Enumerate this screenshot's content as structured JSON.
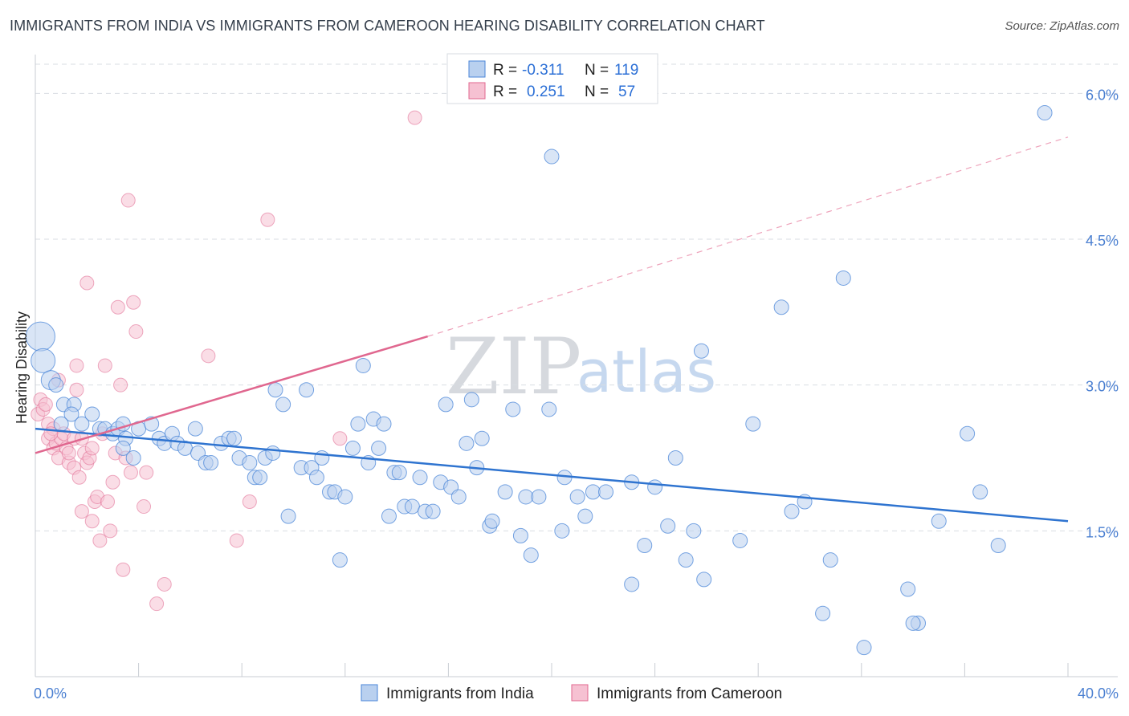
{
  "title": "IMMIGRANTS FROM INDIA VS IMMIGRANTS FROM CAMEROON HEARING DISABILITY CORRELATION CHART",
  "source": "Source: ZipAtlas.com",
  "watermark": {
    "zip": "ZIP",
    "atlas": "atlas"
  },
  "colors": {
    "india": "#4a86d8",
    "india_fill": "#b9d0ef",
    "cameroon": "#e0678f",
    "cameroon_fill": "#f6c1d2",
    "tick_text": "#4a7fd1",
    "grid": "#d9dde3"
  },
  "legend": {
    "rows": [
      {
        "r_label": "R =",
        "r_value": "-0.311",
        "n_label": "N =",
        "n_value": "119"
      },
      {
        "r_label": "R =",
        "r_value": "0.251",
        "n_label": "N =",
        "n_value": "57"
      }
    ]
  },
  "bottom_legend": [
    "Immigrants from India",
    "Immigrants from Cameroon"
  ],
  "chart_data": {
    "type": "scatter",
    "title": "IMMIGRANTS FROM INDIA VS IMMIGRANTS FROM CAMEROON HEARING DISABILITY CORRELATION CHART",
    "xlabel": "",
    "ylabel": "Hearing Disability",
    "xlim": [
      0,
      40
    ],
    "ylim": [
      0,
      6.3
    ],
    "x_tick_labels": [
      "0.0%",
      "40.0%"
    ],
    "y_ticks": [
      1.5,
      3.0,
      4.5,
      6.0
    ],
    "y_tick_labels": [
      "1.5%",
      "3.0%",
      "4.5%",
      "6.0%"
    ],
    "grid": true,
    "legend_position": "top-center",
    "series": [
      {
        "name": "Immigrants from India",
        "r": -0.311,
        "n": 119,
        "trend": {
          "x": [
            0,
            40
          ],
          "y": [
            2.55,
            1.6
          ]
        },
        "points": [
          [
            0.2,
            3.5
          ],
          [
            0.3,
            3.25
          ],
          [
            0.6,
            3.05
          ],
          [
            0.8,
            3.0
          ],
          [
            1.1,
            2.8
          ],
          [
            1.5,
            2.8
          ],
          [
            1.4,
            2.7
          ],
          [
            1.0,
            2.6
          ],
          [
            1.8,
            2.6
          ],
          [
            2.2,
            2.7
          ],
          [
            2.5,
            2.55
          ],
          [
            2.7,
            2.55
          ],
          [
            3.0,
            2.5
          ],
          [
            3.2,
            2.55
          ],
          [
            3.4,
            2.6
          ],
          [
            3.5,
            2.45
          ],
          [
            4.0,
            2.55
          ],
          [
            4.5,
            2.6
          ],
          [
            4.8,
            2.45
          ],
          [
            5.0,
            2.4
          ],
          [
            5.3,
            2.5
          ],
          [
            5.5,
            2.4
          ],
          [
            5.8,
            2.35
          ],
          [
            6.2,
            2.55
          ],
          [
            6.3,
            2.3
          ],
          [
            6.6,
            2.2
          ],
          [
            6.8,
            2.2
          ],
          [
            7.2,
            2.4
          ],
          [
            7.5,
            2.45
          ],
          [
            7.7,
            2.45
          ],
          [
            3.4,
            2.35
          ],
          [
            3.8,
            2.25
          ],
          [
            7.9,
            2.25
          ],
          [
            8.3,
            2.2
          ],
          [
            8.5,
            2.05
          ],
          [
            8.7,
            2.05
          ],
          [
            8.9,
            2.25
          ],
          [
            9.2,
            2.3
          ],
          [
            9.3,
            2.95
          ],
          [
            9.6,
            2.8
          ],
          [
            9.8,
            1.65
          ],
          [
            10.3,
            2.15
          ],
          [
            10.5,
            2.95
          ],
          [
            10.7,
            2.15
          ],
          [
            10.9,
            2.05
          ],
          [
            11.1,
            2.25
          ],
          [
            11.4,
            1.9
          ],
          [
            11.6,
            1.9
          ],
          [
            11.8,
            1.2
          ],
          [
            12.0,
            1.85
          ],
          [
            12.3,
            2.35
          ],
          [
            12.5,
            2.6
          ],
          [
            12.7,
            3.2
          ],
          [
            12.9,
            2.2
          ],
          [
            13.1,
            2.65
          ],
          [
            13.3,
            2.35
          ],
          [
            13.5,
            2.6
          ],
          [
            13.7,
            1.65
          ],
          [
            13.9,
            2.1
          ],
          [
            14.1,
            2.1
          ],
          [
            14.3,
            1.75
          ],
          [
            14.6,
            1.75
          ],
          [
            14.9,
            2.05
          ],
          [
            15.1,
            1.7
          ],
          [
            15.4,
            1.7
          ],
          [
            15.7,
            2.0
          ],
          [
            15.9,
            2.8
          ],
          [
            16.1,
            1.95
          ],
          [
            16.4,
            1.85
          ],
          [
            16.7,
            2.4
          ],
          [
            16.9,
            2.85
          ],
          [
            17.1,
            2.15
          ],
          [
            17.3,
            2.45
          ],
          [
            17.6,
            1.55
          ],
          [
            17.7,
            1.6
          ],
          [
            18.2,
            1.9
          ],
          [
            18.5,
            2.75
          ],
          [
            18.8,
            1.45
          ],
          [
            19.0,
            1.85
          ],
          [
            19.2,
            1.25
          ],
          [
            19.5,
            1.85
          ],
          [
            19.9,
            2.75
          ],
          [
            20.0,
            5.35
          ],
          [
            20.4,
            1.5
          ],
          [
            20.5,
            2.05
          ],
          [
            21.0,
            1.85
          ],
          [
            21.3,
            1.65
          ],
          [
            21.6,
            1.9
          ],
          [
            22.1,
            1.9
          ],
          [
            23.1,
            0.95
          ],
          [
            23.1,
            2.0
          ],
          [
            23.6,
            1.35
          ],
          [
            24.0,
            1.95
          ],
          [
            24.5,
            1.55
          ],
          [
            24.8,
            2.25
          ],
          [
            25.2,
            1.2
          ],
          [
            25.5,
            1.5
          ],
          [
            25.8,
            3.35
          ],
          [
            25.9,
            1.0
          ],
          [
            27.3,
            1.4
          ],
          [
            27.8,
            2.6
          ],
          [
            28.9,
            3.8
          ],
          [
            29.3,
            1.7
          ],
          [
            29.8,
            1.8
          ],
          [
            30.5,
            0.65
          ],
          [
            30.8,
            1.2
          ],
          [
            31.3,
            4.1
          ],
          [
            32.1,
            0.3
          ],
          [
            33.8,
            0.9
          ],
          [
            34.2,
            0.55
          ],
          [
            34.0,
            0.55
          ],
          [
            35.0,
            1.6
          ],
          [
            36.1,
            2.5
          ],
          [
            36.6,
            1.9
          ],
          [
            37.3,
            1.35
          ],
          [
            39.1,
            5.8
          ]
        ]
      },
      {
        "name": "Immigrants from Cameroon",
        "r": 0.251,
        "n": 57,
        "trend": {
          "x": [
            0,
            15.2
          ],
          "y": [
            2.3,
            3.5
          ]
        },
        "trend_extension": {
          "x": [
            15.2,
            40
          ],
          "y": [
            3.5,
            5.55
          ]
        },
        "points": [
          [
            0.1,
            2.7
          ],
          [
            0.2,
            2.85
          ],
          [
            0.3,
            2.75
          ],
          [
            0.4,
            2.8
          ],
          [
            0.5,
            2.6
          ],
          [
            0.5,
            2.45
          ],
          [
            0.7,
            2.55
          ],
          [
            0.7,
            2.35
          ],
          [
            0.8,
            2.4
          ],
          [
            0.9,
            3.05
          ],
          [
            0.9,
            2.25
          ],
          [
            1.0,
            2.45
          ],
          [
            1.1,
            2.5
          ],
          [
            1.2,
            2.35
          ],
          [
            1.3,
            2.2
          ],
          [
            1.3,
            2.3
          ],
          [
            1.5,
            2.45
          ],
          [
            1.5,
            2.15
          ],
          [
            1.6,
            3.2
          ],
          [
            1.6,
            2.95
          ],
          [
            1.7,
            2.05
          ],
          [
            1.8,
            2.45
          ],
          [
            1.8,
            1.7
          ],
          [
            1.9,
            2.3
          ],
          [
            2.0,
            2.2
          ],
          [
            2.0,
            4.05
          ],
          [
            2.1,
            2.25
          ],
          [
            2.2,
            2.35
          ],
          [
            2.2,
            1.6
          ],
          [
            2.3,
            1.8
          ],
          [
            2.4,
            1.85
          ],
          [
            2.5,
            1.4
          ],
          [
            2.6,
            2.5
          ],
          [
            2.7,
            3.2
          ],
          [
            2.8,
            1.8
          ],
          [
            2.9,
            1.5
          ],
          [
            3.0,
            2.0
          ],
          [
            3.1,
            2.3
          ],
          [
            3.2,
            3.8
          ],
          [
            3.3,
            3.0
          ],
          [
            3.4,
            1.1
          ],
          [
            3.5,
            2.25
          ],
          [
            3.6,
            4.9
          ],
          [
            3.7,
            2.1
          ],
          [
            3.8,
            3.85
          ],
          [
            3.9,
            3.55
          ],
          [
            4.2,
            1.75
          ],
          [
            4.3,
            2.1
          ],
          [
            4.7,
            0.75
          ],
          [
            5.0,
            0.95
          ],
          [
            6.7,
            3.3
          ],
          [
            7.8,
            1.4
          ],
          [
            8.3,
            1.8
          ],
          [
            9.0,
            4.7
          ],
          [
            11.8,
            2.45
          ],
          [
            14.7,
            5.75
          ],
          [
            0.6,
            2.5
          ]
        ]
      }
    ]
  }
}
